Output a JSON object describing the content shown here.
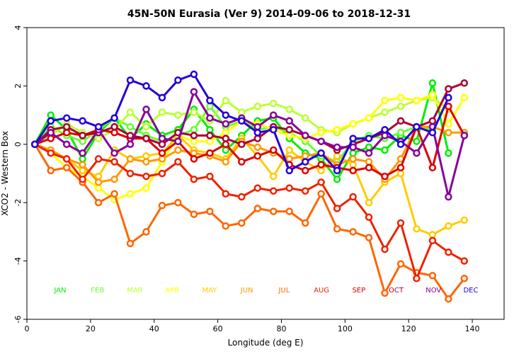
{
  "chart_data": {
    "type": "line",
    "title": "45N-50N Eurasia (Ver 9)   2014-09-06 to 2018-12-31",
    "xlabel": "Longitude (deg E)",
    "ylabel": "XCO2 - Western Box",
    "xlim": [
      0,
      150
    ],
    "ylim": [
      -6,
      4
    ],
    "xticks": [
      0,
      20,
      40,
      60,
      80,
      100,
      120,
      140
    ],
    "yticks": [
      -6,
      -4,
      -2,
      0,
      2,
      4
    ],
    "x": [
      2.5,
      7.5,
      12.5,
      17.5,
      22.5,
      27.5,
      32.5,
      37.5,
      42.5,
      47.5,
      52.5,
      57.5,
      62.5,
      67.5,
      72.5,
      77.5,
      82.5,
      87.5,
      92.5,
      97.5,
      102.5,
      107.5,
      112.5,
      117.5,
      122.5,
      127.5,
      132.5,
      137.5
    ],
    "legend_position": "bottom inside plot",
    "series": [
      {
        "name": "JAN",
        "color": "#00ee00",
        "values": [
          0,
          1.0,
          0.5,
          -0.5,
          0.4,
          0.9,
          0.2,
          0.7,
          0.3,
          0.5,
          1.2,
          0.5,
          -0.2,
          0.3,
          0.8,
          0.9,
          0.2,
          -0.3,
          -0.5,
          -1.2,
          -0.3,
          -0.1,
          -0.2,
          0.3,
          0.1,
          2.1,
          -0.3,
          null
        ]
      },
      {
        "name": "FEB",
        "color": "#66ff33",
        "values": [
          0,
          0.6,
          0.3,
          0.1,
          0.5,
          0.9,
          0.6,
          0.3,
          0.1,
          0.3,
          0.5,
          1.3,
          0.6,
          0.8,
          0.5,
          0.6,
          0.4,
          0.1,
          -0.4,
          -0.6,
          0.1,
          0.3,
          0.2,
          0.4,
          0.6,
          0.5,
          null,
          null
        ]
      },
      {
        "name": "MAR",
        "color": "#bbff33",
        "values": [
          0,
          0.3,
          0.7,
          0.4,
          0.2,
          0.5,
          1.1,
          0.6,
          1.1,
          1.0,
          1.1,
          0.8,
          1.5,
          1.1,
          1.3,
          1.4,
          1.2,
          0.9,
          0.5,
          0.4,
          0.7,
          0.9,
          1.1,
          1.3,
          1.5,
          1.6,
          1.2,
          null
        ]
      },
      {
        "name": "APR",
        "color": "#ffff00",
        "values": [
          0,
          -0.3,
          -0.8,
          -1.1,
          -1.5,
          -1.9,
          -1.7,
          -1.5,
          -0.6,
          0.3,
          0.1,
          0.1,
          0.4,
          0.8,
          0.7,
          0.5,
          0.3,
          0.2,
          0.4,
          0.5,
          0.7,
          0.9,
          1.5,
          1.6,
          1.5,
          1.7,
          0.7,
          1.6
        ]
      },
      {
        "name": "MAY",
        "color": "#ffcc00",
        "values": [
          0,
          -0.2,
          -0.5,
          -0.9,
          -1.1,
          -0.2,
          -0.5,
          -0.4,
          -0.3,
          0.3,
          -0.2,
          -0.3,
          -0.5,
          0.2,
          -0.4,
          -1.1,
          -0.2,
          -0.6,
          -0.9,
          -0.4,
          -0.7,
          -2.0,
          -1.3,
          -1.0,
          -2.9,
          -3.1,
          -2.8,
          -2.6
        ]
      },
      {
        "name": "JUN",
        "color": "#ff9900",
        "values": [
          0,
          -0.2,
          -0.5,
          -0.7,
          -1.3,
          -1.2,
          -0.5,
          -0.6,
          -0.5,
          -0.2,
          -0.3,
          -0.4,
          -0.6,
          0.1,
          -0.1,
          -0.3,
          -0.5,
          -0.4,
          -0.3,
          -0.7,
          -0.5,
          -0.6,
          -1.2,
          -0.5,
          0.6,
          0.6,
          0.4,
          0.4
        ]
      },
      {
        "name": "JUL",
        "color": "#ff6600",
        "values": [
          0,
          -0.9,
          -0.8,
          -1.3,
          -2.0,
          -1.7,
          -3.4,
          -3.0,
          -2.1,
          -2.0,
          -2.4,
          -2.3,
          -2.8,
          -2.7,
          -2.2,
          -2.3,
          -2.3,
          -2.7,
          -1.7,
          -2.9,
          -3.0,
          -3.2,
          -5.1,
          -4.1,
          -4.4,
          -4.5,
          -5.3,
          -4.6
        ]
      },
      {
        "name": "AUG",
        "color": "#ee2200",
        "values": [
          0,
          -0.3,
          -0.5,
          -1.2,
          -0.5,
          -0.6,
          -1.0,
          -1.1,
          -1.0,
          -0.6,
          -1.2,
          -1.1,
          -1.7,
          -1.8,
          -1.5,
          -1.6,
          -1.5,
          -1.6,
          -1.3,
          -2.2,
          -1.8,
          -2.5,
          -3.6,
          -2.7,
          -4.6,
          -3.3,
          -3.7,
          -4.0
        ]
      },
      {
        "name": "SEP",
        "color": "#dd0000",
        "values": [
          0,
          0.2,
          0.4,
          0.3,
          0.5,
          0.4,
          0.2,
          0.2,
          -0.3,
          0.1,
          -0.5,
          -0.3,
          0.0,
          -0.6,
          -0.4,
          -0.2,
          -0.7,
          -0.9,
          -0.7,
          -0.8,
          -0.9,
          -0.8,
          -1.1,
          -0.8,
          0.6,
          -0.8,
          1.3,
          0.3
        ]
      },
      {
        "name": "OCT",
        "color": "#aa0033",
        "values": [
          0,
          0.5,
          0.6,
          0.3,
          0.4,
          0.6,
          0.3,
          0.2,
          0.0,
          0.4,
          0.3,
          0.3,
          0.2,
          0.0,
          0.2,
          0.6,
          0.5,
          0.3,
          0.1,
          -0.2,
          0.0,
          0.2,
          0.4,
          0.8,
          0.6,
          0.8,
          1.9,
          2.1
        ]
      },
      {
        "name": "NOV",
        "color": "#880099",
        "values": [
          0,
          0.4,
          0.0,
          -0.3,
          0.5,
          -0.3,
          0.0,
          1.2,
          0.2,
          0.1,
          1.8,
          0.9,
          0.7,
          0.9,
          0.6,
          1.0,
          0.8,
          0.3,
          0.1,
          -0.1,
          -0.1,
          -0.3,
          0.3,
          0.1,
          -0.3,
          0.6,
          -1.8,
          0.3
        ]
      },
      {
        "name": "DEC",
        "color": "#2200dd",
        "values": [
          0,
          0.8,
          0.9,
          0.8,
          0.6,
          0.9,
          2.2,
          2.0,
          1.6,
          2.2,
          2.4,
          1.5,
          1.0,
          0.8,
          0.4,
          0.5,
          -0.9,
          -0.6,
          -0.3,
          -0.9,
          0.2,
          0.2,
          0.5,
          0.0,
          0.6,
          0.4,
          1.6,
          null
        ]
      }
    ]
  }
}
